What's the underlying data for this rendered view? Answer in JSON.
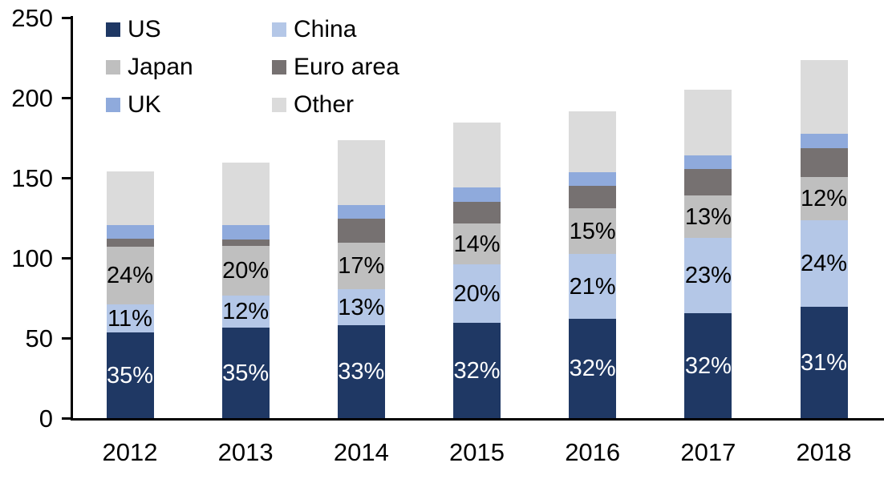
{
  "chart_data": {
    "type": "bar",
    "stacked": true,
    "title": "",
    "xlabel": "",
    "ylabel": "",
    "categories": [
      "2012",
      "2013",
      "2014",
      "2015",
      "2016",
      "2017",
      "2018"
    ],
    "series": [
      {
        "name": "US",
        "color": "#1F3864",
        "values": [
          53.5,
          56.5,
          58,
          59.5,
          62,
          65.5,
          69.5
        ],
        "labels": [
          "35%",
          "35%",
          "33%",
          "32%",
          "32%",
          "32%",
          "31%"
        ],
        "label_color": "#FFFFFF"
      },
      {
        "name": "China",
        "color": "#B4C7E7",
        "values": [
          17.5,
          20,
          22.5,
          36.5,
          40.5,
          47,
          54
        ],
        "labels": [
          "11%",
          "12%",
          "13%",
          "20%",
          "21%",
          "23%",
          "24%"
        ],
        "label_color": "#000000"
      },
      {
        "name": "Japan",
        "color": "#BFBFBF",
        "values": [
          36,
          31,
          29,
          25.5,
          28.5,
          26.5,
          27
        ],
        "labels": [
          "24%",
          "20%",
          "17%",
          "14%",
          "15%",
          "13%",
          "12%"
        ],
        "label_color": "#000000"
      },
      {
        "name": "Euro area",
        "color": "#767171",
        "values": [
          5,
          4,
          15,
          13.5,
          14,
          16.5,
          18
        ],
        "labels": null,
        "label_color": null
      },
      {
        "name": "UK",
        "color": "#8FAADC",
        "values": [
          8.5,
          9,
          8.5,
          9,
          8.5,
          8.5,
          9
        ],
        "labels": null,
        "label_color": null
      },
      {
        "name": "Other",
        "color": "#DBDBDB",
        "values": [
          33.5,
          39,
          40.5,
          40.5,
          38,
          41,
          46
        ],
        "labels": null,
        "label_color": null
      }
    ],
    "y_axis": {
      "min": 0,
      "max": 250,
      "step": 50,
      "tick_labels": [
        "0",
        "50",
        "100",
        "150",
        "200",
        "250"
      ]
    },
    "x_axis": {
      "labels": [
        "2012",
        "2013",
        "2014",
        "2015",
        "2016",
        "2017",
        "2018"
      ]
    },
    "legend": {
      "position": "top-left",
      "columns": 2,
      "items": [
        "US",
        "China",
        "Japan",
        "Euro area",
        "UK",
        "Other"
      ]
    },
    "grid": false,
    "axis_color": "#000000"
  }
}
